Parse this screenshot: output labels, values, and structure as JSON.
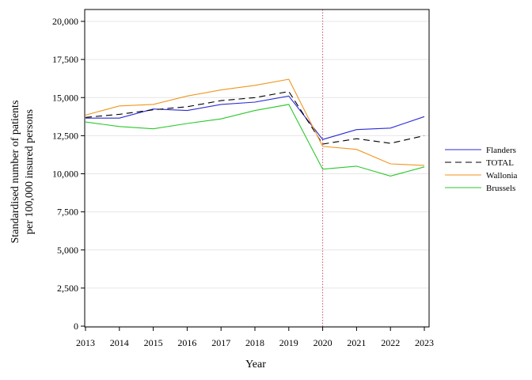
{
  "chart_data": {
    "type": "line",
    "xlabel": "Year",
    "ylabel_lines": [
      "Standardised number of patients",
      "per 100,000 insured persons"
    ],
    "x": [
      2013,
      2014,
      2015,
      2016,
      2017,
      2018,
      2019,
      2020,
      2021,
      2022,
      2023
    ],
    "x_tick_labels": [
      "2013",
      "2014",
      "2015",
      "2016",
      "2017",
      "2018",
      "2019",
      "2020",
      "2021",
      "2022",
      "2023"
    ],
    "ylim": [
      0,
      20000
    ],
    "y_ticks": [
      0,
      2500,
      5000,
      7500,
      10000,
      12500,
      15000,
      17500,
      20000
    ],
    "y_tick_labels": [
      "0",
      "2,500",
      "5,000",
      "7,500",
      "10,000",
      "12,500",
      "15,000",
      "17,500",
      "20,000"
    ],
    "grid": true,
    "legend_position": "right",
    "reference_line_x": 2020,
    "reference_line_color": "#c8506a",
    "series": [
      {
        "name": "Flanders",
        "color": "#2b2bd6",
        "dash": "solid",
        "values": [
          13650,
          13650,
          14250,
          14150,
          14550,
          14700,
          15100,
          12250,
          12900,
          13000,
          13750
        ]
      },
      {
        "name": "TOTAL",
        "color": "#000000",
        "dash": "dashed",
        "values": [
          13700,
          13900,
          14200,
          14400,
          14800,
          15000,
          15400,
          11950,
          12300,
          12000,
          12500
        ]
      },
      {
        "name": "Wallonia",
        "color": "#f0961e",
        "dash": "solid",
        "values": [
          13850,
          14450,
          14550,
          15100,
          15500,
          15800,
          16200,
          11800,
          11600,
          10650,
          10550
        ]
      },
      {
        "name": "Brussels",
        "color": "#2bc82b",
        "dash": "solid",
        "values": [
          13400,
          13100,
          12950,
          13300,
          13600,
          14150,
          14550,
          10300,
          10500,
          9850,
          10450
        ]
      }
    ]
  }
}
